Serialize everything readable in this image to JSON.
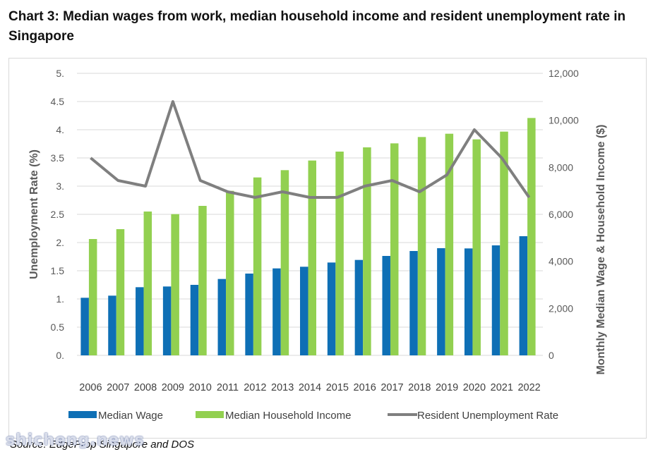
{
  "page": {
    "title": "Chart 3: Median wages from work, median household income and resident unemployment rate in Singapore",
    "source": "Source: EdgeProp Singapore and DOS",
    "watermark": "shicheng.news"
  },
  "chart_data": {
    "type": "bar",
    "title": "Chart 3: Median wages from work, median household income and resident unemployment rate in Singapore",
    "categories": [
      "2006",
      "2007",
      "2008",
      "2009",
      "2010",
      "2011",
      "2012",
      "2013",
      "2014",
      "2015",
      "2016",
      "2017",
      "2018",
      "2019",
      "2020",
      "2021",
      "2022"
    ],
    "y_left": {
      "label": "Unemployment Rate (%)",
      "range": [
        0,
        5
      ],
      "ticks": [
        "0.",
        "0.5",
        "1.",
        "1.5",
        "2.",
        "2.5",
        "3.",
        "3.5",
        "4.",
        "4.5",
        "5."
      ]
    },
    "y_right": {
      "label": "Monthly Median Wage & Household Income ($)",
      "range": [
        0,
        12000
      ],
      "ticks": [
        "0",
        "2,000",
        "4,000",
        "6,000",
        "8,000",
        "10,000",
        "12,000"
      ]
    },
    "series": [
      {
        "name": "Median Wage",
        "type": "bar",
        "axis": "right",
        "color": "#0e6fb5",
        "values": [
          2450,
          2540,
          2900,
          2930,
          3000,
          3250,
          3480,
          3700,
          3770,
          3950,
          4060,
          4230,
          4440,
          4560,
          4550,
          4680,
          5070
        ]
      },
      {
        "name": "Median Household Income",
        "type": "bar",
        "axis": "right",
        "color": "#92d050",
        "values": [
          4950,
          5370,
          6120,
          6010,
          6360,
          7000,
          7570,
          7880,
          8290,
          8670,
          8850,
          9020,
          9290,
          9430,
          9190,
          9520,
          10100
        ]
      },
      {
        "name": "Resident Unemployment Rate",
        "type": "line",
        "axis": "left",
        "color": "#7f7f7f",
        "values": [
          3.5,
          3.1,
          3.0,
          4.5,
          3.1,
          2.9,
          2.8,
          2.9,
          2.8,
          2.8,
          3.0,
          3.1,
          2.9,
          3.2,
          4.0,
          3.5,
          2.8
        ]
      }
    ],
    "legend": {
      "placement": "bottom"
    },
    "grid": true
  }
}
